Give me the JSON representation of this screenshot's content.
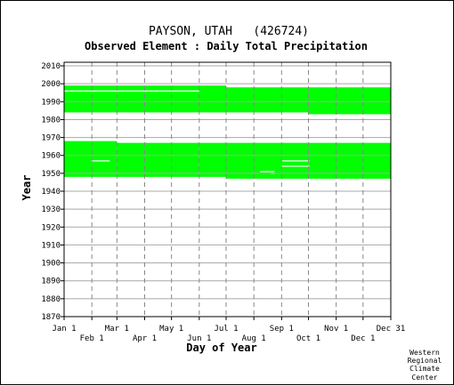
{
  "chart_data": {
    "type": "bar",
    "title": "PAYSON, UTAH   (426724)",
    "subtitle": "Observed Element : Daily Total Precipitation",
    "xlabel": "Day of Year",
    "ylabel": "Year",
    "credit": [
      "Western",
      "Regional",
      "Climate",
      "Center"
    ],
    "xlim": [
      1,
      366
    ],
    "ylim": [
      1870,
      2012
    ],
    "x_ticks_row1": [
      {
        "label": "Jan 1",
        "day": 1
      },
      {
        "label": "Mar 1",
        "day": 60
      },
      {
        "label": "May 1",
        "day": 121
      },
      {
        "label": "Jul 1",
        "day": 182
      },
      {
        "label": "Sep 1",
        "day": 244
      },
      {
        "label": "Nov 1",
        "day": 305
      },
      {
        "label": "Dec 31",
        "day": 366
      }
    ],
    "x_ticks_row2": [
      {
        "label": "Feb 1",
        "day": 32
      },
      {
        "label": "Apr 1",
        "day": 91
      },
      {
        "label": "Jun 1",
        "day": 152
      },
      {
        "label": "Aug 1",
        "day": 213
      },
      {
        "label": "Oct 1",
        "day": 274
      },
      {
        "label": "Dec 1",
        "day": 335
      }
    ],
    "y_ticks": [
      1870,
      1880,
      1890,
      1900,
      1910,
      1920,
      1930,
      1940,
      1950,
      1960,
      1970,
      1980,
      1990,
      2000,
      2010
    ],
    "grid": true,
    "series_color": "#00ff00",
    "coverage_blocks": [
      {
        "day_start": 1,
        "day_end": 60,
        "year_start": 1948,
        "year_end": 1968
      },
      {
        "day_start": 60,
        "day_end": 152,
        "year_start": 1948,
        "year_end": 1967
      },
      {
        "day_start": 152,
        "day_end": 182,
        "year_start": 1948,
        "year_end": 1967
      },
      {
        "day_start": 182,
        "day_end": 366,
        "year_start": 1947,
        "year_end": 1967
      },
      {
        "day_start": 1,
        "day_end": 182,
        "year_start": 1984,
        "year_end": 1999
      },
      {
        "day_start": 182,
        "day_end": 274,
        "year_start": 1984,
        "year_end": 1998
      },
      {
        "day_start": 274,
        "day_end": 366,
        "year_start": 1983,
        "year_end": 1998
      }
    ],
    "coverage_gaps": [
      {
        "day_start": 1,
        "day_end": 152,
        "year": 1996
      },
      {
        "day_start": 31,
        "day_end": 52,
        "year": 1957
      },
      {
        "day_start": 244,
        "day_end": 275,
        "year": 1957
      },
      {
        "day_start": 244,
        "day_end": 275,
        "year": 1954
      },
      {
        "day_start": 220,
        "day_end": 236,
        "year": 1951
      },
      {
        "day_start": 232,
        "day_end": 237,
        "year": 1950
      }
    ]
  }
}
